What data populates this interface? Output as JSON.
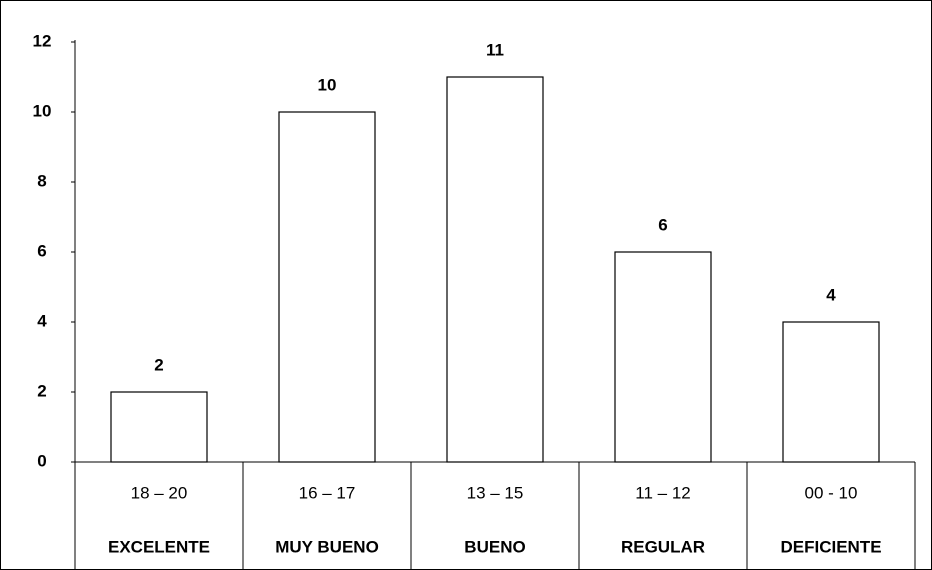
{
  "chart_data": {
    "type": "bar",
    "categories": [
      "18 – 20",
      "16 – 17",
      "13 – 15",
      "11 – 12",
      "00 -  10"
    ],
    "category_names": [
      "EXCELENTE",
      "MUY BUENO",
      "BUENO",
      "REGULAR",
      "DEFICIENTE"
    ],
    "values": [
      2,
      10,
      11,
      6,
      4
    ],
    "color": "#ffffff",
    "ylim": [
      0,
      12
    ],
    "yticks": [
      0,
      2,
      4,
      6,
      8,
      10,
      12
    ],
    "grid": false
  }
}
